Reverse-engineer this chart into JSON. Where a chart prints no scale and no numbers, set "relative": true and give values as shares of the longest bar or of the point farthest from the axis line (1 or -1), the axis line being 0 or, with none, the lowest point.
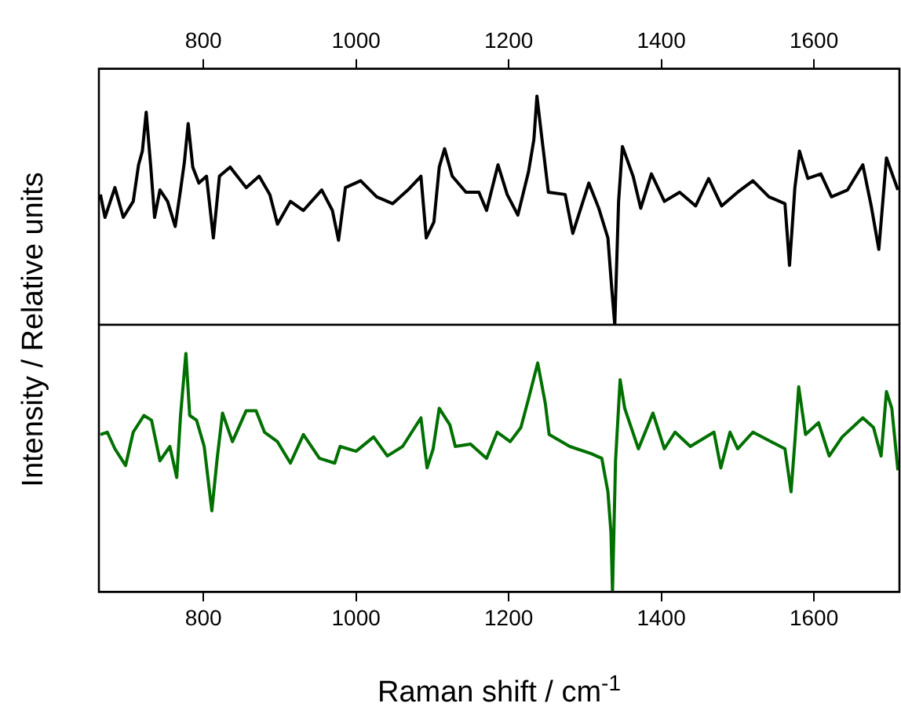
{
  "chart_data": [
    {
      "type": "line",
      "relative": true,
      "ylabel": "Intensity / Relative units",
      "xlim": [
        663,
        1712
      ],
      "xticks": [
        800,
        1000,
        1200,
        1400,
        1600
      ],
      "series": [
        {
          "color": "#000000",
          "x": [
            665,
            671,
            684,
            695,
            708,
            715,
            720,
            725,
            731,
            736,
            743,
            753,
            763,
            770,
            775,
            780,
            786,
            794,
            804,
            813,
            821,
            835,
            856,
            873,
            887,
            897,
            914,
            931,
            955,
            969,
            977,
            986,
            1006,
            1027,
            1048,
            1068,
            1085,
            1092,
            1102,
            1109,
            1116,
            1126,
            1144,
            1161,
            1171,
            1186,
            1198,
            1212,
            1226,
            1233,
            1237,
            1243,
            1252,
            1274,
            1284,
            1305,
            1318,
            1330,
            1335,
            1339,
            1344,
            1349,
            1363,
            1373,
            1387,
            1404,
            1424,
            1445,
            1462,
            1479,
            1500,
            1520,
            1541,
            1562,
            1568,
            1575,
            1581,
            1592,
            1609,
            1623,
            1644,
            1664,
            1675,
            1685,
            1695,
            1710
          ],
          "values": [
            0.57,
            0.47,
            0.6,
            0.47,
            0.54,
            0.7,
            0.76,
            0.93,
            0.69,
            0.47,
            0.59,
            0.54,
            0.43,
            0.59,
            0.71,
            0.88,
            0.69,
            0.62,
            0.65,
            0.38,
            0.65,
            0.69,
            0.6,
            0.65,
            0.57,
            0.44,
            0.54,
            0.5,
            0.59,
            0.5,
            0.37,
            0.6,
            0.63,
            0.56,
            0.53,
            0.59,
            0.65,
            0.38,
            0.45,
            0.69,
            0.77,
            0.65,
            0.58,
            0.58,
            0.5,
            0.7,
            0.57,
            0.48,
            0.67,
            0.81,
            1.0,
            0.83,
            0.58,
            0.57,
            0.4,
            0.62,
            0.51,
            0.38,
            0.16,
            0,
            0.54,
            0.78,
            0.65,
            0.51,
            0.66,
            0.54,
            0.58,
            0.52,
            0.64,
            0.52,
            0.58,
            0.63,
            0.56,
            0.53,
            0.26,
            0.6,
            0.76,
            0.64,
            0.66,
            0.56,
            0.59,
            0.7,
            0.52,
            0.33,
            0.73,
            0.59
          ]
        }
      ]
    },
    {
      "type": "line",
      "relative": true,
      "xlabel": "Raman shift / cm$^{-1}$",
      "xlim": [
        663,
        1712
      ],
      "xticks": [
        800,
        1000,
        1200,
        1400,
        1600
      ],
      "series": [
        {
          "color": "#007000",
          "x": [
            665,
            674,
            684,
            698,
            708,
            722,
            732,
            743,
            756,
            765,
            770,
            777,
            782,
            791,
            801,
            811,
            818,
            825,
            838,
            856,
            869,
            880,
            897,
            914,
            931,
            952,
            972,
            979,
            1000,
            1023,
            1041,
            1061,
            1075,
            1085,
            1093,
            1101,
            1109,
            1123,
            1130,
            1150,
            1171,
            1185,
            1202,
            1216,
            1226,
            1238,
            1248,
            1253,
            1280,
            1308,
            1322,
            1330,
            1334,
            1336,
            1340,
            1346,
            1352,
            1370,
            1389,
            1404,
            1418,
            1438,
            1469,
            1478,
            1490,
            1500,
            1520,
            1544,
            1562,
            1570,
            1575,
            1580,
            1589,
            1606,
            1620,
            1637,
            1664,
            1678,
            1688,
            1695,
            1702,
            1710
          ],
          "values": [
            0.66,
            0.67,
            0.6,
            0.53,
            0.67,
            0.74,
            0.72,
            0.55,
            0.61,
            0.48,
            0.74,
            1.0,
            0.74,
            0.72,
            0.61,
            0.34,
            0.56,
            0.75,
            0.63,
            0.76,
            0.76,
            0.67,
            0.63,
            0.54,
            0.66,
            0.56,
            0.54,
            0.61,
            0.59,
            0.65,
            0.57,
            0.61,
            0.68,
            0.73,
            0.52,
            0.6,
            0.77,
            0.7,
            0.61,
            0.62,
            0.56,
            0.67,
            0.63,
            0.69,
            0.81,
            0.96,
            0.79,
            0.66,
            0.61,
            0.58,
            0.56,
            0.42,
            0.25,
            0,
            0.55,
            0.89,
            0.77,
            0.6,
            0.75,
            0.6,
            0.67,
            0.61,
            0.67,
            0.52,
            0.67,
            0.6,
            0.67,
            0.63,
            0.6,
            0.42,
            0.63,
            0.86,
            0.66,
            0.71,
            0.57,
            0.65,
            0.73,
            0.69,
            0.57,
            0.84,
            0.77,
            0.51
          ]
        }
      ]
    }
  ]
}
